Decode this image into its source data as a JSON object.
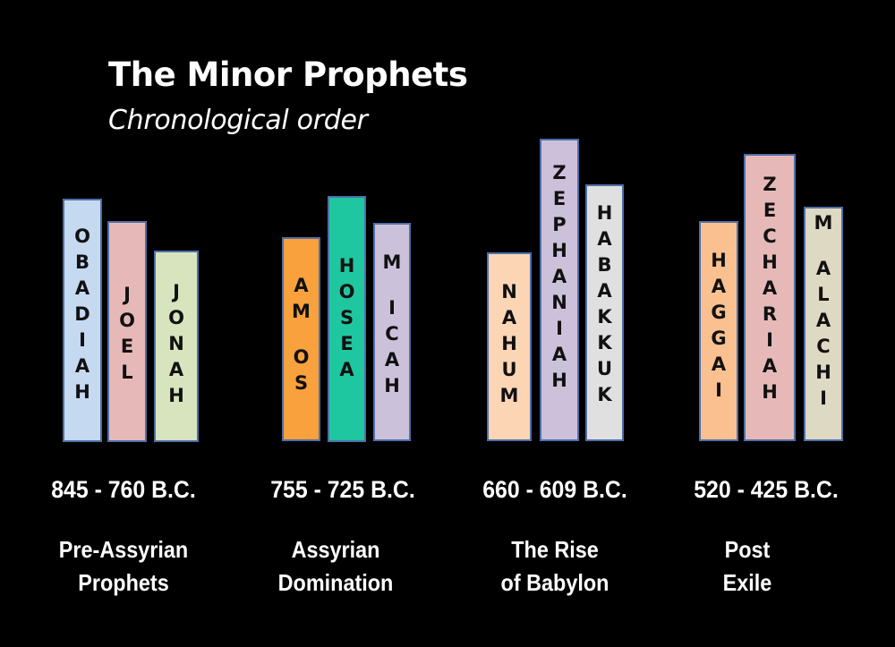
{
  "title": "The Minor Prophets",
  "subtitle": "Chronological order",
  "groups": [
    {
      "dates": "845 - 760 B.C.",
      "era_line1": "Pre-Assyrian",
      "era_line2": "Prophets",
      "books": [
        {
          "letters": [
            "O",
            "B",
            "A",
            "D",
            "I",
            "A",
            "H"
          ],
          "color": "#c5d9f1"
        },
        {
          "letters": [
            "J",
            "O",
            "E",
            "L"
          ],
          "color": "#e6b9b8"
        },
        {
          "letters": [
            "J",
            "O",
            "N",
            "A",
            "H"
          ],
          "color": "#d7e4bd"
        }
      ]
    },
    {
      "dates": "755 - 725 B.C.",
      "era_line1": "Assyrian",
      "era_line2": "Domination",
      "books": [
        {
          "letters": [
            "A",
            "M",
            "",
            "O",
            "S"
          ],
          "color": "#f9a13c"
        },
        {
          "letters": [
            "H",
            "O",
            "S",
            "E",
            "A"
          ],
          "color": "#1fc7a0"
        },
        {
          "letters": [
            "M",
            "",
            "I",
            "C",
            "A",
            "H"
          ],
          "color": "#ccc1da"
        }
      ]
    },
    {
      "dates": "660 - 609 B.C.",
      "era_line1": "The Rise",
      "era_line2": "of Babylon",
      "books": [
        {
          "letters": [
            "N",
            "A",
            "H",
            "U",
            "M"
          ],
          "color": "#fcd5b5"
        },
        {
          "letters": [
            "Z",
            "E",
            "P",
            "H",
            "A",
            "N",
            "I",
            "A",
            "H"
          ],
          "color": "#ccc1da"
        },
        {
          "letters": [
            "H",
            "A",
            "B",
            "A",
            "K",
            "K",
            "U",
            "K"
          ],
          "color": "#e0e0e0"
        }
      ]
    },
    {
      "dates": "520 - 425 B.C.",
      "era_line1": "Post",
      "era_line2": "Exile",
      "books": [
        {
          "letters": [
            "H",
            "A",
            "G",
            "G",
            "A",
            "I"
          ],
          "color": "#fac090"
        },
        {
          "letters": [
            "Z",
            "E",
            "C",
            "H",
            "A",
            "R",
            "I",
            "A",
            "H"
          ],
          "color": "#e6b9b8"
        },
        {
          "letters": [
            "M",
            "",
            "A",
            "L",
            "A",
            "C",
            "H",
            "I"
          ],
          "color": "#ddd9c3"
        }
      ]
    }
  ]
}
